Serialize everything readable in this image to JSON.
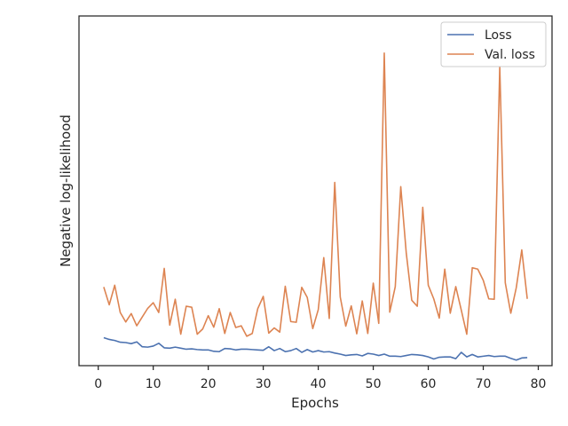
{
  "chart_data": {
    "type": "line",
    "title": "",
    "xlabel": "Epochs",
    "ylabel": "Negative log-likelihood",
    "xlim": [
      -3.5,
      82.5
    ],
    "ylim": [
      0,
      100
    ],
    "x_ticks": [
      0,
      10,
      20,
      30,
      40,
      50,
      60,
      70,
      80
    ],
    "y_ticks": [],
    "grid": false,
    "legend_position": "top-right",
    "x": [
      1,
      2,
      3,
      4,
      5,
      6,
      7,
      8,
      9,
      10,
      11,
      12,
      13,
      14,
      15,
      16,
      17,
      18,
      19,
      20,
      21,
      22,
      23,
      24,
      25,
      26,
      27,
      28,
      29,
      30,
      31,
      32,
      33,
      34,
      35,
      36,
      37,
      38,
      39,
      40,
      41,
      42,
      43,
      44,
      45,
      46,
      47,
      48,
      49,
      50,
      51,
      52,
      53,
      54,
      55,
      56,
      57,
      58,
      59,
      60,
      61,
      62,
      63,
      64,
      65,
      66,
      67,
      68,
      69,
      70,
      71,
      72,
      73,
      74,
      75,
      76,
      77,
      78
    ],
    "series": [
      {
        "name": "Loss",
        "color": "#4c72b0",
        "values": [
          8.0,
          7.5,
          7.2,
          6.7,
          6.6,
          6.3,
          6.8,
          5.4,
          5.3,
          5.6,
          6.4,
          5.1,
          5.0,
          5.3,
          5.0,
          4.7,
          4.8,
          4.6,
          4.5,
          4.5,
          4.1,
          4.0,
          4.9,
          4.8,
          4.5,
          4.7,
          4.7,
          4.6,
          4.5,
          4.4,
          5.4,
          4.3,
          4.9,
          4.0,
          4.3,
          4.9,
          3.8,
          4.6,
          3.9,
          4.3,
          3.9,
          4.0,
          3.6,
          3.3,
          2.9,
          3.1,
          3.2,
          2.8,
          3.5,
          3.3,
          2.9,
          3.3,
          2.7,
          2.7,
          2.6,
          2.9,
          3.2,
          3.1,
          2.9,
          2.5,
          1.9,
          2.4,
          2.5,
          2.5,
          2.0,
          3.8,
          2.5,
          3.2,
          2.5,
          2.7,
          2.9,
          2.6,
          2.7,
          2.7,
          2.1,
          1.6,
          2.2,
          2.3
        ]
      },
      {
        "name": "Val. loss",
        "color": "#dd8452",
        "values": [
          22.5,
          17.4,
          23.0,
          15.2,
          12.5,
          14.9,
          11.4,
          13.9,
          16.4,
          18.0,
          15.2,
          27.8,
          11.6,
          19.0,
          9.0,
          17.0,
          16.7,
          9.0,
          10.5,
          14.3,
          11.0,
          16.3,
          9.2,
          15.2,
          10.9,
          11.4,
          8.4,
          9.2,
          16.3,
          19.8,
          9.3,
          10.8,
          9.6,
          22.7,
          12.6,
          12.4,
          22.4,
          19.5,
          10.6,
          16.0,
          30.9,
          13.5,
          52.4,
          19.6,
          11.3,
          17.1,
          9.1,
          18.5,
          9.2,
          23.6,
          12.1,
          89.4,
          15.3,
          22.6,
          51.2,
          32.2,
          18.7,
          17.0,
          45.3,
          23.0,
          19.1,
          13.6,
          27.6,
          15.0,
          22.6,
          15.9,
          9.0,
          28.0,
          27.6,
          24.4,
          19.1,
          19.0,
          85.5,
          23.7,
          15.0,
          22.3,
          33.1,
          19.1
        ]
      }
    ]
  }
}
